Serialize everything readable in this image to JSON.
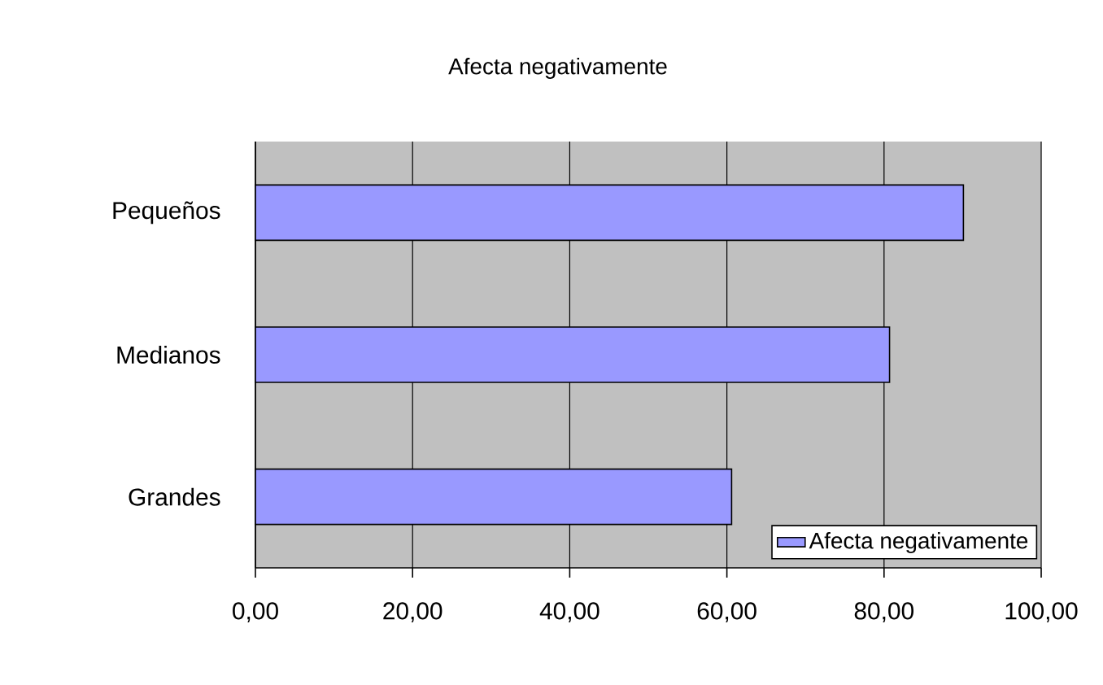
{
  "chart_data": {
    "type": "bar",
    "orientation": "horizontal",
    "title": "Afecta negativamente",
    "categories": [
      "Pequeños",
      "Medianos",
      "Grandes"
    ],
    "series": [
      {
        "name": "Afecta negativamente",
        "color": "#9999ff",
        "values": [
          90.1,
          80.7,
          60.6
        ]
      }
    ],
    "xlim": [
      0,
      100
    ],
    "xticks": [
      {
        "value": 0,
        "label": "0,00"
      },
      {
        "value": 20,
        "label": "20,00"
      },
      {
        "value": 40,
        "label": "40,00"
      },
      {
        "value": 60,
        "label": "60,00"
      },
      {
        "value": 80,
        "label": "80,00"
      },
      {
        "value": 100,
        "label": "100,00"
      }
    ],
    "grid": "x",
    "legend": "bottom right"
  }
}
